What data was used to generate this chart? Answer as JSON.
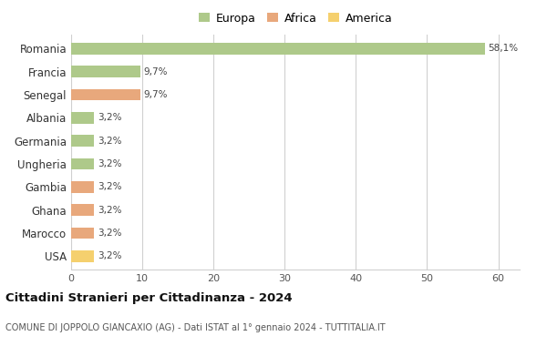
{
  "countries": [
    "Romania",
    "Francia",
    "Senegal",
    "Albania",
    "Germania",
    "Ungheria",
    "Gambia",
    "Ghana",
    "Marocco",
    "USA"
  ],
  "values": [
    58.1,
    9.7,
    9.7,
    3.2,
    3.2,
    3.2,
    3.2,
    3.2,
    3.2,
    3.2
  ],
  "labels": [
    "58,1%",
    "9,7%",
    "9,7%",
    "3,2%",
    "3,2%",
    "3,2%",
    "3,2%",
    "3,2%",
    "3,2%",
    "3,2%"
  ],
  "colors": [
    "#aec98a",
    "#aec98a",
    "#e8a87c",
    "#aec98a",
    "#aec98a",
    "#aec98a",
    "#e8a87c",
    "#e8a87c",
    "#e8a87c",
    "#f5d06e"
  ],
  "legend_labels": [
    "Europa",
    "Africa",
    "America"
  ],
  "legend_colors": [
    "#aec98a",
    "#e8a87c",
    "#f5d06e"
  ],
  "xlim": [
    0,
    63
  ],
  "xticks": [
    0,
    10,
    20,
    30,
    40,
    50,
    60
  ],
  "title": "Cittadini Stranieri per Cittadinanza - 2024",
  "subtitle": "COMUNE DI JOPPOLO GIANCAXIO (AG) - Dati ISTAT al 1° gennaio 2024 - TUTTITALIA.IT",
  "bg_color": "#ffffff",
  "grid_color": "#d0d0d0",
  "bar_height": 0.5
}
